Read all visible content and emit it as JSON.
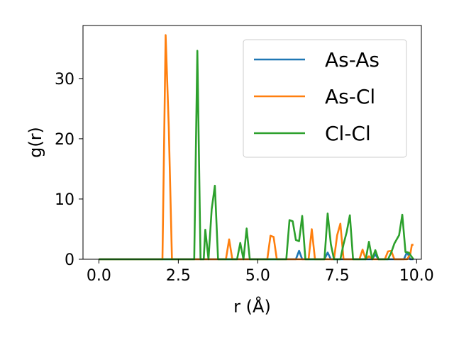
{
  "chart_data": {
    "type": "line",
    "title": "",
    "xlabel": "r (Å)",
    "ylabel": "g(r)",
    "xlim": [
      -0.5,
      10.15
    ],
    "ylim": [
      0,
      38.8
    ],
    "xticks": [
      0.0,
      2.5,
      5.0,
      7.5,
      10.0
    ],
    "xtick_labels": [
      "0.0",
      "2.5",
      "5.0",
      "7.5",
      "10.0"
    ],
    "yticks": [
      0,
      10,
      20,
      30
    ],
    "ytick_labels": [
      "0",
      "10",
      "20",
      "30"
    ],
    "grid": false,
    "legend_position": "top-right",
    "series": [
      {
        "name": "As-As",
        "color": "#1f77b4",
        "points": [
          [
            0.0,
            0
          ],
          [
            6.2,
            0
          ],
          [
            6.3,
            1.4
          ],
          [
            6.4,
            0
          ],
          [
            7.1,
            0
          ],
          [
            7.2,
            1.1
          ],
          [
            7.3,
            0
          ],
          [
            8.6,
            0
          ],
          [
            8.7,
            0.8
          ],
          [
            8.8,
            0
          ],
          [
            9.6,
            0
          ],
          [
            9.7,
            1.2
          ],
          [
            9.8,
            0
          ],
          [
            9.9,
            0
          ]
        ]
      },
      {
        "name": "As-Cl",
        "color": "#ff7f0e",
        "points": [
          [
            0.0,
            0
          ],
          [
            2.0,
            0
          ],
          [
            2.1,
            37.2
          ],
          [
            2.2,
            22.0
          ],
          [
            2.3,
            0
          ],
          [
            4.0,
            0
          ],
          [
            4.1,
            3.3
          ],
          [
            4.2,
            0
          ],
          [
            5.3,
            0
          ],
          [
            5.4,
            3.9
          ],
          [
            5.5,
            3.7
          ],
          [
            5.6,
            0
          ],
          [
            6.6,
            0
          ],
          [
            6.7,
            5.0
          ],
          [
            6.8,
            0
          ],
          [
            7.4,
            0
          ],
          [
            7.5,
            4.0
          ],
          [
            7.6,
            5.9
          ],
          [
            7.7,
            0
          ],
          [
            8.2,
            0
          ],
          [
            8.3,
            1.6
          ],
          [
            8.4,
            0
          ],
          [
            8.5,
            0.5
          ],
          [
            8.6,
            0
          ],
          [
            9.0,
            0
          ],
          [
            9.1,
            1.3
          ],
          [
            9.2,
            1.4
          ],
          [
            9.3,
            0
          ],
          [
            9.7,
            0
          ],
          [
            9.8,
            0.8
          ],
          [
            9.85,
            2.4
          ],
          [
            9.9,
            2.4
          ]
        ]
      },
      {
        "name": "Cl-Cl",
        "color": "#2ca02c",
        "points": [
          [
            0.0,
            0
          ],
          [
            3.0,
            0
          ],
          [
            3.1,
            34.6
          ],
          [
            3.2,
            0
          ],
          [
            3.3,
            0
          ],
          [
            3.35,
            4.9
          ],
          [
            3.45,
            0
          ],
          [
            3.55,
            8.3
          ],
          [
            3.65,
            12.2
          ],
          [
            3.75,
            0
          ],
          [
            4.35,
            0
          ],
          [
            4.45,
            2.7
          ],
          [
            4.55,
            0
          ],
          [
            4.65,
            5.1
          ],
          [
            4.75,
            0
          ],
          [
            5.9,
            0
          ],
          [
            6.0,
            6.5
          ],
          [
            6.1,
            6.3
          ],
          [
            6.2,
            3.2
          ],
          [
            6.3,
            3.0
          ],
          [
            6.4,
            7.2
          ],
          [
            6.5,
            0
          ],
          [
            7.1,
            0
          ],
          [
            7.2,
            7.6
          ],
          [
            7.3,
            2.5
          ],
          [
            7.4,
            0
          ],
          [
            7.6,
            0
          ],
          [
            7.7,
            2.5
          ],
          [
            7.8,
            4.5
          ],
          [
            7.9,
            7.3
          ],
          [
            8.0,
            0
          ],
          [
            8.4,
            0
          ],
          [
            8.5,
            2.9
          ],
          [
            8.6,
            0
          ],
          [
            8.7,
            1.5
          ],
          [
            8.8,
            0
          ],
          [
            8.9,
            0
          ],
          [
            9.1,
            0
          ],
          [
            9.2,
            1.1
          ],
          [
            9.3,
            2.6
          ],
          [
            9.45,
            4.0
          ],
          [
            9.55,
            7.4
          ],
          [
            9.65,
            1.2
          ],
          [
            9.75,
            1.1
          ],
          [
            9.9,
            0
          ]
        ]
      }
    ]
  }
}
